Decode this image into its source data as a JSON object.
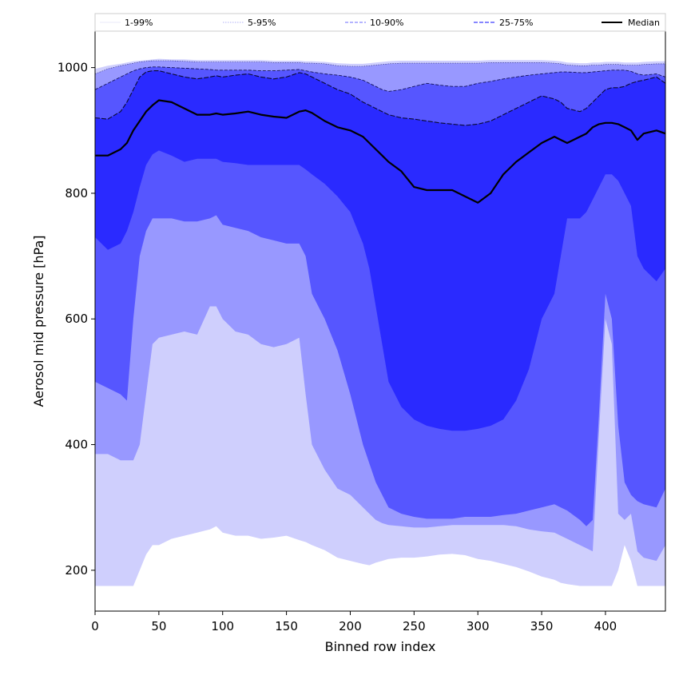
{
  "chart_data": {
    "type": "area",
    "xlabel": "Binned row index",
    "ylabel": "Aerosol mid pressure [hPa]",
    "xlim": [
      0,
      447
    ],
    "ylim": [
      135,
      1058
    ],
    "x_ticks": [
      0,
      50,
      100,
      150,
      200,
      250,
      300,
      350,
      400
    ],
    "y_ticks": [
      200,
      400,
      600,
      800,
      1000
    ],
    "grid": false,
    "legend_position": "top, spanning full width above plot",
    "legend": [
      {
        "label": "1-99%",
        "color": "#d3d3f5",
        "style": "thin-solid"
      },
      {
        "label": "5-95%",
        "color": "#9898f5",
        "style": "dotted"
      },
      {
        "label": "10-90%",
        "color": "#6a6aff",
        "style": "dashed"
      },
      {
        "label": "25-75%",
        "color": "#3f3fff",
        "style": "dashed"
      },
      {
        "label": "Median",
        "color": "#000000",
        "style": "solid"
      }
    ],
    "colors": {
      "band_1_99": "#cfcffd",
      "band_5_95": "#9898ff",
      "band_10_90": "#5656ff",
      "band_25_75": "#2a2aff",
      "median": "#000000"
    },
    "x": [
      0,
      10,
      20,
      25,
      30,
      35,
      40,
      45,
      50,
      60,
      70,
      80,
      90,
      95,
      100,
      110,
      120,
      130,
      140,
      150,
      160,
      165,
      170,
      180,
      190,
      200,
      210,
      215,
      220,
      225,
      230,
      240,
      250,
      260,
      270,
      280,
      290,
      300,
      310,
      320,
      330,
      340,
      350,
      360,
      365,
      370,
      380,
      385,
      390,
      395,
      400,
      405,
      410,
      415,
      420,
      425,
      430,
      440,
      447
    ],
    "series": [
      {
        "name": "1-99%",
        "lower": [
          175,
          175,
          175,
          175,
          175,
          200,
          225,
          240,
          240,
          250,
          255,
          260,
          265,
          270,
          260,
          255,
          255,
          250,
          252,
          255,
          248,
          245,
          240,
          232,
          220,
          215,
          210,
          208,
          212,
          215,
          218,
          220,
          220,
          222,
          225,
          226,
          224,
          218,
          215,
          210,
          205,
          198,
          190,
          185,
          180,
          178,
          175,
          175,
          175,
          175,
          175,
          175,
          200,
          240,
          215,
          175,
          175,
          175,
          175
        ],
        "upper": [
          998,
          1003,
          1006,
          1008,
          1010,
          1011,
          1012,
          1013,
          1014,
          1013,
          1013,
          1012,
          1012,
          1012,
          1012,
          1012,
          1012,
          1012,
          1011,
          1011,
          1011,
          1010,
          1010,
          1009,
          1007,
          1006,
          1006,
          1007,
          1008,
          1009,
          1010,
          1011,
          1011,
          1011,
          1011,
          1011,
          1011,
          1011,
          1012,
          1012,
          1012,
          1012,
          1012,
          1011,
          1010,
          1008,
          1007,
          1007,
          1008,
          1008,
          1009,
          1009,
          1009,
          1008,
          1008,
          1008,
          1009,
          1010,
          1010
        ]
      },
      {
        "name": "5-95%",
        "lower": [
          385,
          385,
          375,
          375,
          375,
          400,
          480,
          560,
          570,
          575,
          580,
          575,
          620,
          620,
          600,
          580,
          575,
          560,
          555,
          560,
          570,
          480,
          400,
          360,
          330,
          320,
          300,
          290,
          280,
          275,
          272,
          270,
          268,
          268,
          270,
          272,
          272,
          272,
          272,
          272,
          270,
          265,
          262,
          260,
          255,
          250,
          240,
          235,
          230,
          420,
          600,
          560,
          290,
          280,
          290,
          230,
          220,
          215,
          240
        ]
      },
      {
        "name": "10-90%",
        "lower": [
          500,
          490,
          480,
          470,
          600,
          700,
          740,
          760,
          760,
          760,
          755,
          755,
          760,
          765,
          750,
          745,
          740,
          730,
          725,
          720,
          720,
          700,
          640,
          600,
          550,
          480,
          400,
          370,
          340,
          320,
          300,
          290,
          285,
          282,
          282,
          282,
          285,
          285,
          285,
          288,
          290,
          295,
          300,
          305,
          300,
          295,
          280,
          270,
          280,
          450,
          640,
          600,
          430,
          340,
          320,
          310,
          305,
          300,
          330
        ]
      },
      {
        "name": "25-75%",
        "lower": [
          730,
          710,
          720,
          740,
          770,
          810,
          845,
          862,
          868,
          860,
          850,
          855,
          855,
          855,
          850,
          848,
          845,
          845,
          845,
          845,
          845,
          838,
          830,
          815,
          795,
          770,
          720,
          680,
          620,
          560,
          500,
          460,
          440,
          430,
          425,
          422,
          422,
          425,
          430,
          440,
          470,
          520,
          600,
          640,
          700,
          760,
          760,
          770,
          790,
          810,
          830,
          830,
          820,
          800,
          780,
          700,
          680,
          660,
          680
        ],
        "upper": [
          985,
          993,
          997,
          999,
          1000,
          1001,
          1002,
          1003,
          1003,
          1002,
          1002,
          1001,
          1000,
          1000,
          1000,
          1000,
          1000,
          1000,
          1000,
          1000,
          1000,
          1000,
          999,
          999,
          998,
          998,
          997,
          996,
          995,
          994,
          990,
          985,
          980,
          977,
          975,
          975,
          975,
          976,
          978,
          980,
          983,
          986,
          988,
          990,
          992,
          993,
          993,
          994,
          995,
          996,
          997,
          998,
          998,
          998,
          997,
          996,
          996,
          996,
          997
        ]
      },
      {
        "name": "Median",
        "values": [
          860,
          860,
          870,
          880,
          900,
          915,
          930,
          940,
          948,
          945,
          935,
          925,
          925,
          927,
          925,
          927,
          930,
          925,
          922,
          920,
          930,
          932,
          928,
          915,
          905,
          900,
          890,
          880,
          870,
          860,
          850,
          835,
          810,
          805,
          805,
          805,
          795,
          785,
          800,
          830,
          850,
          865,
          880,
          890,
          885,
          880,
          890,
          895,
          905,
          910,
          912,
          912,
          910,
          905,
          900,
          885,
          895,
          900,
          895
        ]
      }
    ],
    "extra_envelopes": {
      "5-95%_upper": [
        990,
        998,
        1003,
        1005,
        1007,
        1009,
        1010,
        1011,
        1011,
        1011,
        1010,
        1009,
        1009,
        1009,
        1009,
        1009,
        1009,
        1009,
        1008,
        1008,
        1008,
        1007,
        1007,
        1006,
        1003,
        1002,
        1002,
        1003,
        1004,
        1005,
        1006,
        1007,
        1007,
        1007,
        1007,
        1007,
        1007,
        1007,
        1008,
        1008,
        1008,
        1008,
        1008,
        1007,
        1006,
        1004,
        1003,
        1003,
        1004,
        1004,
        1005,
        1005,
        1005,
        1004,
        1004,
        1004,
        1005,
        1006,
        1006
      ],
      "10-90%_upper": [
        965,
        975,
        985,
        990,
        995,
        998,
        1000,
        1001,
        1001,
        1000,
        999,
        998,
        997,
        996,
        996,
        996,
        996,
        995,
        995,
        996,
        997,
        995,
        993,
        990,
        988,
        985,
        980,
        975,
        970,
        965,
        962,
        965,
        970,
        975,
        972,
        970,
        970,
        975,
        978,
        982,
        985,
        988,
        990,
        992,
        993,
        993,
        992,
        992,
        993,
        994,
        995,
        996,
        996,
        996,
        994,
        990,
        988,
        990,
        985
      ],
      "25-75%_upper_line": [
        920,
        918,
        930,
        945,
        965,
        985,
        993,
        995,
        995,
        990,
        985,
        982,
        985,
        987,
        985,
        988,
        990,
        985,
        982,
        985,
        992,
        990,
        985,
        975,
        965,
        958,
        945,
        940,
        935,
        930,
        925,
        920,
        918,
        915,
        912,
        910,
        908,
        910,
        915,
        925,
        935,
        945,
        955,
        950,
        945,
        935,
        930,
        935,
        945,
        955,
        965,
        968,
        968,
        970,
        975,
        978,
        980,
        985,
        975
      ]
    }
  }
}
